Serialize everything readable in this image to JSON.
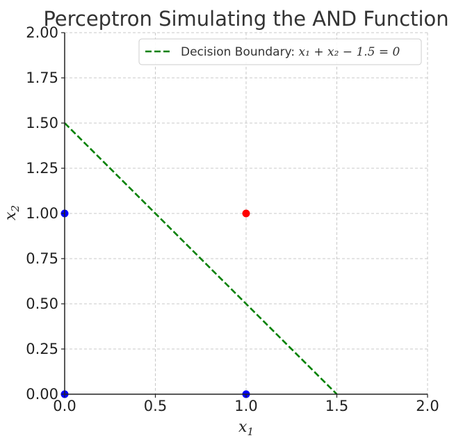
{
  "chart_data": {
    "type": "scatter",
    "title": "Perceptron Simulating the AND Function",
    "xlabel_var": "x",
    "xlabel_sub": "1",
    "ylabel_var": "x",
    "ylabel_sub": "2",
    "xlim": [
      0.0,
      2.0
    ],
    "ylim": [
      0.0,
      2.0
    ],
    "xticks": [
      0.0,
      0.5,
      1.0,
      1.5,
      2.0
    ],
    "xtick_labels": [
      "0.0",
      "0.5",
      "1.0",
      "1.5",
      "2.0"
    ],
    "yticks": [
      0.0,
      0.25,
      0.5,
      0.75,
      1.0,
      1.25,
      1.5,
      1.75,
      2.0
    ],
    "ytick_labels": [
      "0.00",
      "0.25",
      "0.50",
      "0.75",
      "1.00",
      "1.25",
      "1.50",
      "1.75",
      "2.00"
    ],
    "grid": true,
    "grid_color": "#c8c8c8",
    "legend_position": "top-right",
    "points": [
      {
        "x": 0,
        "y": 0,
        "color": "#0000ff"
      },
      {
        "x": 0,
        "y": 1,
        "color": "#0000ff"
      },
      {
        "x": 1,
        "y": 0,
        "color": "#0000ff"
      },
      {
        "x": 1,
        "y": 1,
        "color": "#ff0000"
      }
    ],
    "decision_boundary": {
      "label_prefix": "Decision Boundary: ",
      "equation": "x₁ + x₂ − 1.5 = 0",
      "x": [
        0,
        1.5
      ],
      "y": [
        1.5,
        0
      ],
      "color": "#008000",
      "style": "dashed"
    }
  }
}
